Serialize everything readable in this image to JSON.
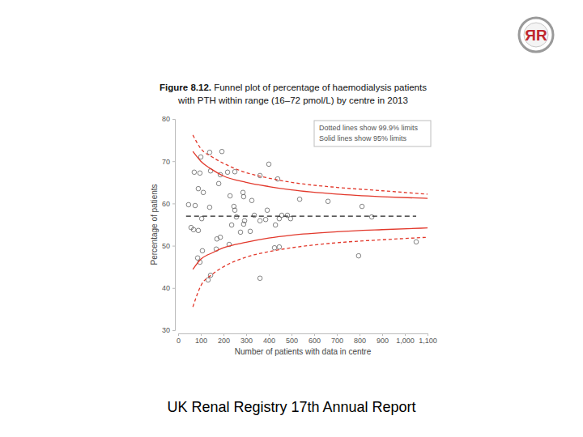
{
  "chart_data": {
    "type": "scatter",
    "title": [
      "Figure 8.12. Funnel plot of percentage of haemodialysis patients",
      "with PTH within range (16–72 pmol/L) by centre in 2013"
    ],
    "x_label": "Number of patients with data in centre",
    "y_label": "Percentage of patients",
    "annotations": [
      "Dotted lines show 99.9% limits",
      "Solid lines show 95% limits"
    ],
    "xlim": [
      0,
      1100
    ],
    "xticks": [
      0,
      100,
      200,
      300,
      400,
      500,
      600,
      700,
      800,
      900,
      {
        "value": 1000,
        "label": "1,000"
      },
      {
        "value": 1100,
        "label": "1,100"
      }
    ],
    "ylim": [
      30,
      80
    ],
    "yticks": [
      30,
      40,
      50,
      60,
      70,
      80
    ],
    "grid": false,
    "series": [
      {
        "type": "scatter",
        "marker": "circle-open",
        "color": "#666666",
        "x": [
          100,
          139,
          193,
          71,
          96,
          143,
          186,
          218,
          250,
          179,
          89,
          111,
          361,
          400,
          439,
          229,
          286,
          289,
          46,
          75,
          139,
          246,
          250,
          325,
          536,
          661,
          811,
          854,
          393,
          336,
          257,
          104,
          293,
          289,
          361,
          386,
          446,
          457,
          482,
          496,
          429,
          236,
          68,
          89,
          275,
          318,
          171,
          186,
          225,
          168,
          107,
          86,
          96,
          425,
          446,
          143,
          132,
          361,
          796,
          1050,
          57
        ],
        "values": [
          71,
          72.1,
          72.3,
          67.4,
          67.2,
          67.7,
          66.8,
          67.4,
          67.5,
          64.7,
          63.5,
          62.6,
          66.6,
          69.3,
          65.8,
          61.8,
          62.6,
          61.6,
          59.7,
          59.5,
          59.1,
          59.3,
          58.4,
          60.7,
          61.0,
          60.5,
          59.3,
          56.8,
          58.4,
          57.2,
          56.8,
          56.4,
          55.9,
          55.1,
          55.9,
          56.2,
          56.4,
          57.2,
          57.2,
          56.4,
          54.9,
          54.9,
          53.8,
          53.6,
          53.2,
          53.4,
          51.6,
          52.0,
          50.3,
          49.2,
          48.8,
          47.1,
          46.1,
          49.5,
          49.7,
          43.0,
          41.9,
          42.3,
          47.6,
          50.9,
          54.3
        ]
      },
      {
        "type": "line",
        "line_style": "dotted",
        "color": "#e2382b",
        "x": [
          65,
          100,
          150,
          200,
          300,
          400,
          500,
          700,
          900,
          1100
        ],
        "values": [
          76.2,
          73,
          71,
          69.5,
          67.3,
          66,
          65,
          63.8,
          63,
          62.2
        ]
      },
      {
        "type": "line",
        "line_style": "solid",
        "color": "#e2382b",
        "x": [
          65,
          100,
          150,
          200,
          300,
          400,
          500,
          700,
          900,
          1100
        ],
        "values": [
          72.3,
          70,
          68,
          66.5,
          65,
          64,
          63.2,
          62.2,
          61.6,
          61.2
        ]
      },
      {
        "type": "line",
        "line_style": "solid",
        "color": "#e2382b",
        "x": [
          65,
          100,
          150,
          200,
          300,
          400,
          500,
          700,
          900,
          1100
        ],
        "values": [
          44.4,
          46.8,
          48.3,
          49.5,
          50.8,
          51.8,
          52.5,
          53.3,
          53.8,
          54.2
        ]
      },
      {
        "type": "line",
        "line_style": "dotted",
        "color": "#e2382b",
        "x": [
          65,
          100,
          150,
          200,
          300,
          400,
          500,
          700,
          900,
          1100
        ],
        "values": [
          35.5,
          40.5,
          43.2,
          45,
          47.3,
          48.6,
          49.5,
          50.7,
          51.4,
          52
        ]
      },
      {
        "type": "line",
        "line_style": "dashed",
        "color": "#222222",
        "x": [
          35,
          1050
        ],
        "values": [
          57,
          57
        ]
      }
    ]
  },
  "page": {
    "footer": "UK Renal Registry 17th Annual Report",
    "logo": "ЯR"
  }
}
